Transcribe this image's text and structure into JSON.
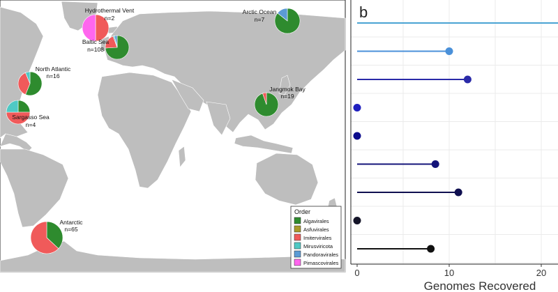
{
  "colors": {
    "land": "#bebebe",
    "ocean": "#ffffff",
    "border": "#222222",
    "grid": "#ebebeb"
  },
  "chart_data": [
    {
      "type": "pie",
      "title": "",
      "legend": {
        "title": "Order",
        "placement": "bottom-right",
        "entries": [
          {
            "label": "Algavirales",
            "color": "#2e8b2e"
          },
          {
            "label": "Asfuvirales",
            "color": "#a89a2a"
          },
          {
            "label": "Imitervirales",
            "color": "#f05a5a"
          },
          {
            "label": "Mirusviricota",
            "color": "#4fc9c4"
          },
          {
            "label": "Pandoravirales",
            "color": "#5b9bd5"
          },
          {
            "label": "Pimascovirales",
            "color": "#ff66ee"
          }
        ]
      },
      "sites": [
        {
          "name": "Hydrothermal Vent",
          "n_label": "n=2",
          "slices": {
            "Imitervirales": 1,
            "Pimascovirales": 1
          }
        },
        {
          "name": "Baltic Sea",
          "n_label": "n=108",
          "slices": {
            "Algavirales": 80,
            "Imitervirales": 22,
            "Mirusviricota": 2,
            "Pandoravirales": 4
          }
        },
        {
          "name": "Arctic Ocean",
          "n_label": "n=7",
          "slices": {
            "Algavirales": 6,
            "Pandoravirales": 1
          }
        },
        {
          "name": "North Atlantic",
          "n_label": "n=16",
          "slices": {
            "Algavirales": 9,
            "Imitervirales": 6,
            "Mirusviricota": 1
          }
        },
        {
          "name": "Sargasso Sea",
          "n_label": "n=4",
          "slices": {
            "Algavirales": 1,
            "Imitervirales": 2,
            "Mirusviricota": 1
          }
        },
        {
          "name": "Jangmok Bay",
          "n_label": "n=19",
          "slices": {
            "Algavirales": 18,
            "Imitervirales": 1
          }
        },
        {
          "name": "Antarctic",
          "n_label": "n=65",
          "slices": {
            "Algavirales": 24,
            "Imitervirales": 41
          }
        }
      ]
    },
    {
      "type": "lollipop",
      "panel_label": "b",
      "xlabel": "Genomes Recovered",
      "ylabel": "",
      "xlim": [
        0,
        22.5
      ],
      "x_ticks": [
        0,
        10,
        20
      ],
      "grid": true,
      "values": [
        23,
        10,
        12,
        0,
        0,
        8.5,
        11,
        0,
        8
      ],
      "colors": [
        "#4aa3d3",
        "#4a90d9",
        "#2a2aa8",
        "#1f1fbf",
        "#0c0c8c",
        "#14147a",
        "#0f0f50",
        "#141428",
        "#111111"
      ]
    }
  ]
}
